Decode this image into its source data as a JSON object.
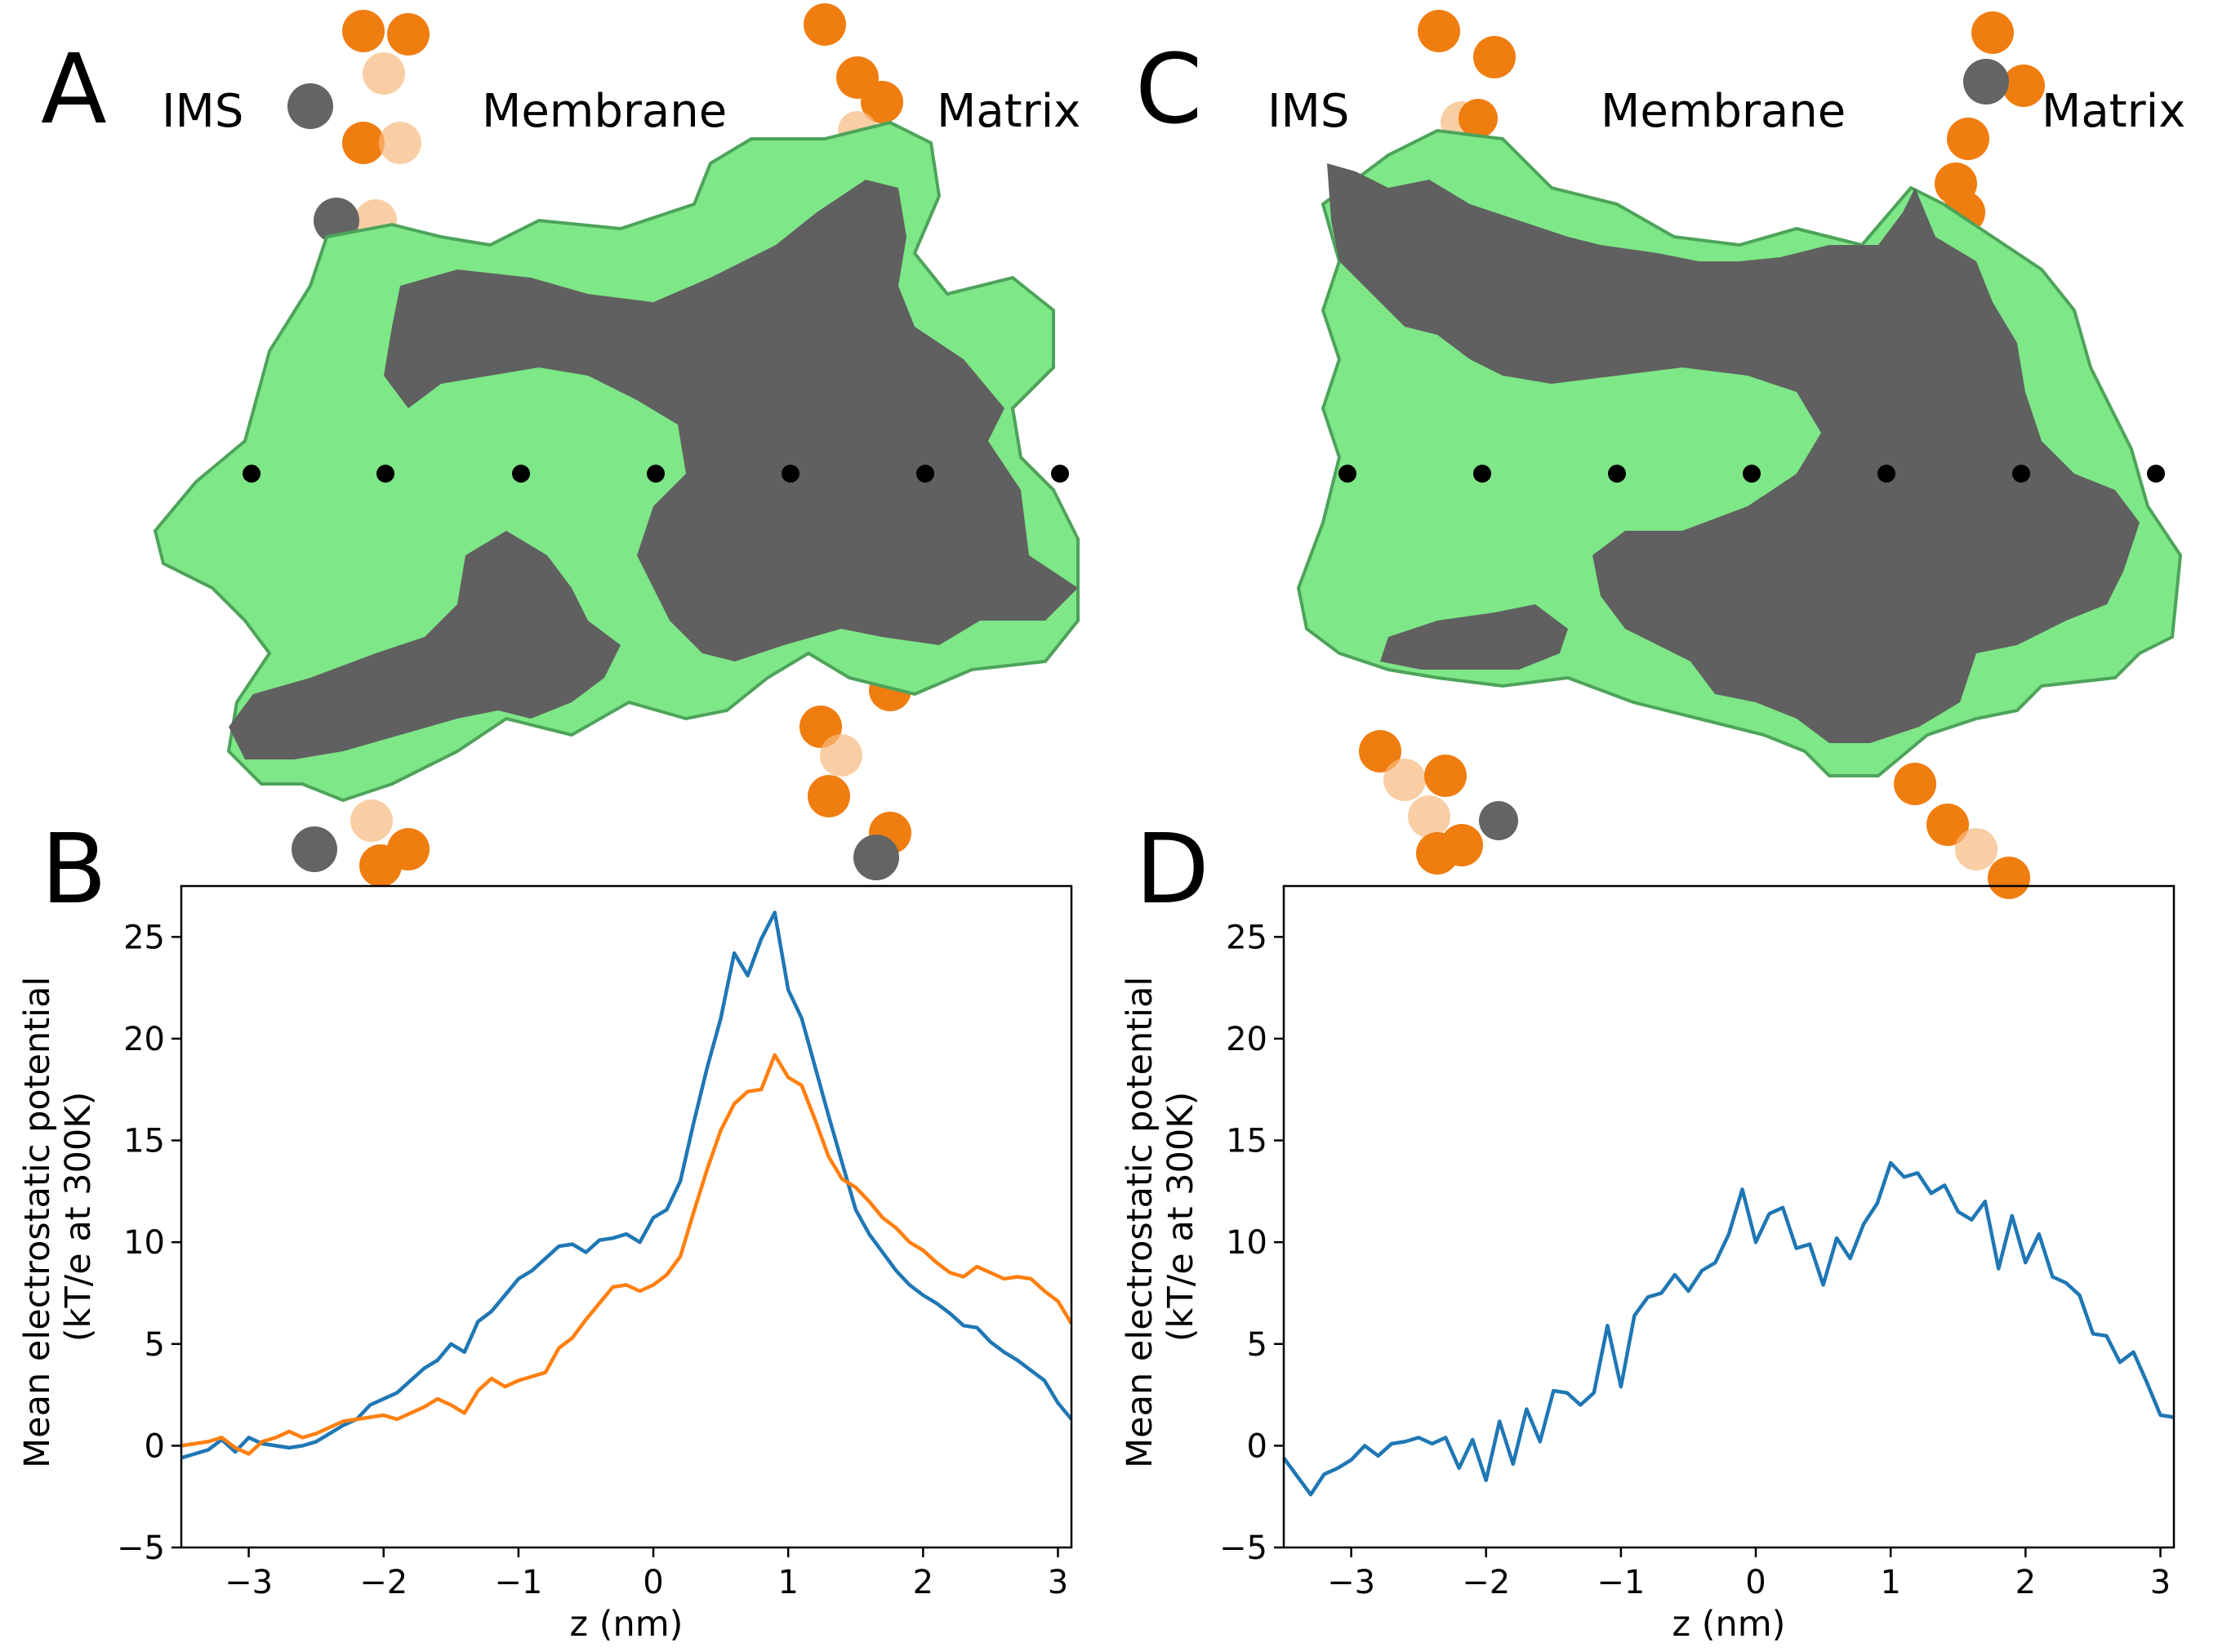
{
  "panels": {
    "A": {
      "letter": "A",
      "labels": [
        "IMS",
        "Membrane",
        "Matrix"
      ]
    },
    "C": {
      "letter": "C",
      "labels": [
        "IMS",
        "Membrane",
        "Matrix"
      ]
    },
    "B": {
      "letter": "B"
    },
    "D": {
      "letter": "D"
    }
  },
  "colors": {
    "protein_surface": "#7ee787",
    "protein_cut": "#606060",
    "lipid_bead": "#f07d10",
    "lipid_bead_grey": "#646464",
    "z_marker": "#000000",
    "series_1": "#1f77b4",
    "series_2": "#ff7f0e"
  },
  "chart_data": [
    {
      "panel": "B",
      "type": "line",
      "xlabel": "z (nm)",
      "ylabel": "Mean electrostatic potential\n(kT/e at 300K)",
      "xlim": [
        -3.5,
        3.1
      ],
      "ylim": [
        -5,
        27.5
      ],
      "xticks": [
        -3,
        -2,
        -1,
        0,
        1,
        2,
        3
      ],
      "xtick_labels": [
        "−3",
        "−2",
        "−1",
        "0",
        "1",
        "2",
        "3"
      ],
      "yticks": [
        -5,
        0,
        5,
        10,
        15,
        20,
        25
      ],
      "ytick_labels": [
        "−5",
        "0",
        "5",
        "10",
        "15",
        "20",
        "25"
      ],
      "grid": false,
      "series": [
        {
          "color": "#1f77b4",
          "x": [
            -3.5,
            -3.4,
            -3.3,
            -3.2,
            -3.1,
            -3.0,
            -2.9,
            -2.8,
            -2.7,
            -2.6,
            -2.5,
            -2.4,
            -2.3,
            -2.2,
            -2.1,
            -2.0,
            -1.9,
            -1.8,
            -1.7,
            -1.6,
            -1.5,
            -1.4,
            -1.3,
            -1.2,
            -1.1,
            -1.0,
            -0.9,
            -0.8,
            -0.7,
            -0.6,
            -0.5,
            -0.4,
            -0.3,
            -0.2,
            -0.1,
            0.0,
            0.1,
            0.2,
            0.3,
            0.4,
            0.5,
            0.6,
            0.7,
            0.8,
            0.9,
            1.0,
            1.1,
            1.2,
            1.3,
            1.4,
            1.5,
            1.6,
            1.7,
            1.8,
            1.9,
            2.0,
            2.1,
            2.2,
            2.3,
            2.4,
            2.5,
            2.6,
            2.7,
            2.8,
            2.9,
            3.0,
            3.1
          ],
          "y": [
            -0.6,
            -0.4,
            -0.2,
            0.3,
            -0.3,
            0.4,
            0.1,
            0.0,
            -0.1,
            0.0,
            0.2,
            0.6,
            1.0,
            1.3,
            2.0,
            2.3,
            2.6,
            3.2,
            3.8,
            4.2,
            5.0,
            4.6,
            6.1,
            6.6,
            7.4,
            8.2,
            8.6,
            9.2,
            9.8,
            9.9,
            9.5,
            10.1,
            10.2,
            10.4,
            10.0,
            11.2,
            11.6,
            13.0,
            15.9,
            18.6,
            21.0,
            24.2,
            23.1,
            24.9,
            26.2,
            22.4,
            21.0,
            18.6,
            16.2,
            13.9,
            11.6,
            10.4,
            9.5,
            8.6,
            7.9,
            7.4,
            7.0,
            6.5,
            5.9,
            5.8,
            5.1,
            4.6,
            4.2,
            3.7,
            3.2,
            2.1,
            1.3
          ]
        },
        {
          "color": "#ff7f0e",
          "x": [
            -3.5,
            -3.4,
            -3.3,
            -3.2,
            -3.1,
            -3.0,
            -2.9,
            -2.8,
            -2.7,
            -2.6,
            -2.5,
            -2.4,
            -2.3,
            -2.2,
            -2.1,
            -2.0,
            -1.9,
            -1.8,
            -1.7,
            -1.6,
            -1.5,
            -1.4,
            -1.3,
            -1.2,
            -1.1,
            -1.0,
            -0.9,
            -0.8,
            -0.7,
            -0.6,
            -0.5,
            -0.4,
            -0.3,
            -0.2,
            -0.1,
            0.0,
            0.1,
            0.2,
            0.3,
            0.4,
            0.5,
            0.6,
            0.7,
            0.8,
            0.9,
            1.0,
            1.1,
            1.2,
            1.3,
            1.4,
            1.5,
            1.6,
            1.7,
            1.8,
            1.9,
            2.0,
            2.1,
            2.2,
            2.3,
            2.4,
            2.5,
            2.6,
            2.7,
            2.8,
            2.9,
            3.0,
            3.1
          ],
          "y": [
            0.0,
            0.1,
            0.2,
            0.4,
            -0.1,
            -0.4,
            0.2,
            0.4,
            0.7,
            0.4,
            0.6,
            0.9,
            1.2,
            1.3,
            1.4,
            1.5,
            1.3,
            1.6,
            1.9,
            2.3,
            2.0,
            1.6,
            2.7,
            3.3,
            2.9,
            3.2,
            3.4,
            3.6,
            4.8,
            5.3,
            6.2,
            7.0,
            7.8,
            7.9,
            7.6,
            7.9,
            8.4,
            9.3,
            11.5,
            13.6,
            15.5,
            16.8,
            17.4,
            17.5,
            19.2,
            18.1,
            17.7,
            16.0,
            14.2,
            13.1,
            12.7,
            12.0,
            11.2,
            10.7,
            10.0,
            9.6,
            9.0,
            8.5,
            8.3,
            8.8,
            8.5,
            8.2,
            8.3,
            8.2,
            7.6,
            7.1,
            6.0
          ]
        }
      ]
    },
    {
      "panel": "D",
      "type": "line",
      "xlabel": "z (nm)",
      "ylabel": "Mean electrostatic potential\n(kT/e at 300K)",
      "xlim": [
        -3.5,
        3.1
      ],
      "ylim": [
        -5,
        27.5
      ],
      "xticks": [
        -3,
        -2,
        -1,
        0,
        1,
        2,
        3
      ],
      "xtick_labels": [
        "−3",
        "−2",
        "−1",
        "0",
        "1",
        "2",
        "3"
      ],
      "yticks": [
        -5,
        0,
        5,
        10,
        15,
        20,
        25
      ],
      "ytick_labels": [
        "−5",
        "0",
        "5",
        "10",
        "15",
        "20",
        "25"
      ],
      "grid": false,
      "series": [
        {
          "color": "#1f77b4",
          "x": [
            -3.5,
            -3.4,
            -3.3,
            -3.2,
            -3.1,
            -3.0,
            -2.9,
            -2.8,
            -2.7,
            -2.6,
            -2.5,
            -2.4,
            -2.3,
            -2.2,
            -2.1,
            -2.0,
            -1.9,
            -1.8,
            -1.7,
            -1.6,
            -1.5,
            -1.4,
            -1.3,
            -1.2,
            -1.1,
            -1.0,
            -0.9,
            -0.8,
            -0.7,
            -0.6,
            -0.5,
            -0.4,
            -0.3,
            -0.2,
            -0.1,
            0.0,
            0.1,
            0.2,
            0.3,
            0.4,
            0.5,
            0.6,
            0.7,
            0.8,
            0.9,
            1.0,
            1.1,
            1.2,
            1.3,
            1.4,
            1.5,
            1.6,
            1.7,
            1.8,
            1.9,
            2.0,
            2.1,
            2.2,
            2.3,
            2.4,
            2.5,
            2.6,
            2.7,
            2.8,
            2.9,
            3.0,
            3.1
          ],
          "y": [
            -0.6,
            -1.5,
            -2.4,
            -1.4,
            -1.1,
            -0.7,
            0.0,
            -0.5,
            0.1,
            0.2,
            0.4,
            0.1,
            0.4,
            -1.1,
            0.3,
            -1.7,
            1.2,
            -0.9,
            1.8,
            0.2,
            2.7,
            2.6,
            2.0,
            2.6,
            5.9,
            2.9,
            6.4,
            7.3,
            7.5,
            8.4,
            7.6,
            8.6,
            9.0,
            10.4,
            12.6,
            10.0,
            11.4,
            11.7,
            9.7,
            9.9,
            7.9,
            10.2,
            9.2,
            10.9,
            11.9,
            13.9,
            13.2,
            13.4,
            12.4,
            12.8,
            11.5,
            11.1,
            12.0,
            8.7,
            11.3,
            9.0,
            10.4,
            8.3,
            8.0,
            7.4,
            5.5,
            5.4,
            4.1,
            4.6,
            3.1,
            1.5,
            1.4
          ]
        }
      ]
    }
  ]
}
